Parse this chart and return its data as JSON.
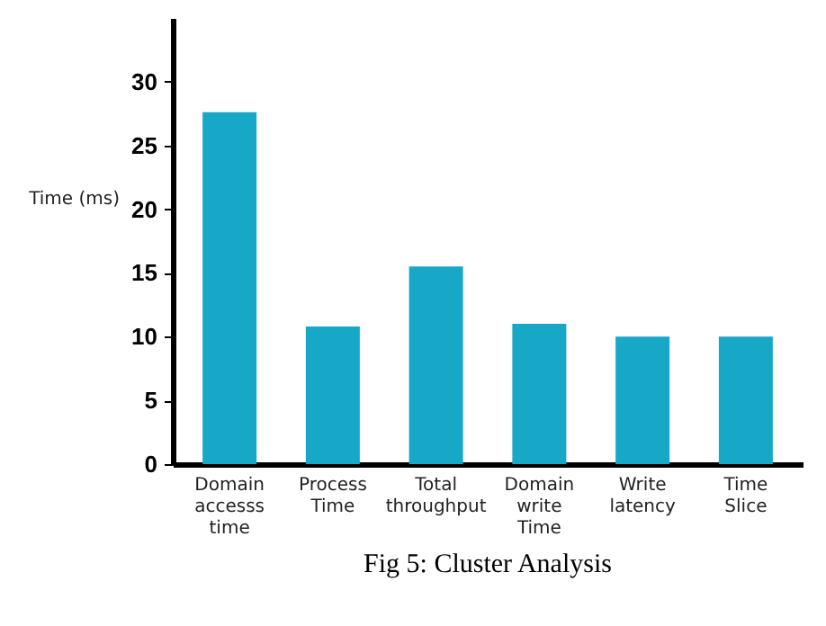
{
  "chart_data": {
    "type": "bar",
    "title": "Fig 5: Cluster Analysis",
    "ylabel": "Time (ms)",
    "categories": [
      "Domain accesss time",
      "Process Time",
      "Total throughput",
      "Domain write Time",
      "Write latency",
      "Time Slice"
    ],
    "values": [
      27.6,
      10.8,
      15.5,
      11,
      10,
      10
    ],
    "color": "#17a8c8",
    "ylim": [
      0,
      35
    ],
    "yticks": [
      0,
      5,
      10,
      15,
      20,
      25,
      30
    ],
    "grid": false
  }
}
